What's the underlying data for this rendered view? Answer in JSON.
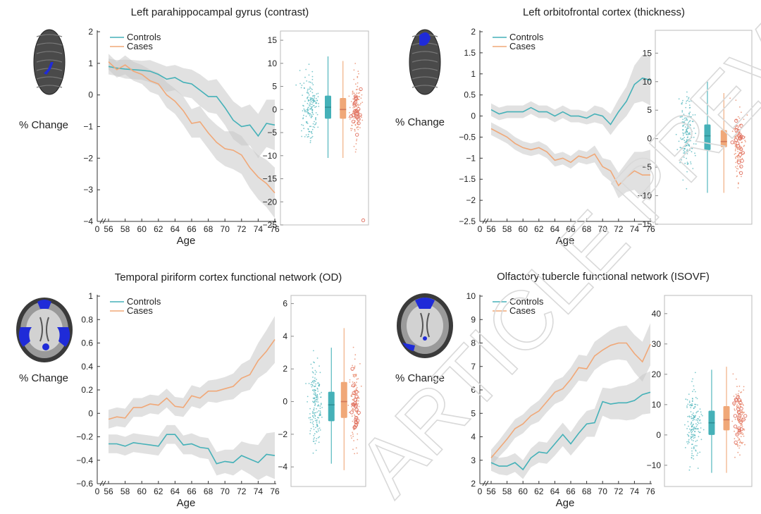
{
  "chart_data": [
    {
      "type": "line",
      "title": "Left parahippocampal gyrus (contrast)",
      "ylabel": "% Change",
      "xlabel": "Age",
      "x": [
        56,
        57,
        58,
        59,
        60,
        61,
        62,
        63,
        64,
        65,
        66,
        67,
        68,
        69,
        70,
        71,
        72,
        73,
        74,
        75,
        76
      ],
      "xticks": [
        "0",
        "56",
        "58",
        "60",
        "62",
        "64",
        "66",
        "68",
        "70",
        "72",
        "74",
        "76"
      ],
      "ylim": [
        -4,
        2
      ],
      "yticks": [
        "2",
        "1",
        "0",
        "−1",
        "−2",
        "−3",
        "−4"
      ],
      "series": [
        {
          "name": "Controls",
          "color": "#45b1b8",
          "values": [
            0.9,
            0.85,
            0.82,
            0.8,
            0.78,
            0.75,
            0.65,
            0.5,
            0.55,
            0.4,
            0.35,
            0.15,
            -0.05,
            -0.05,
            -0.4,
            -0.8,
            -1.0,
            -0.95,
            -1.3,
            -0.9,
            -0.95
          ]
        },
        {
          "name": "Cases",
          "color": "#f0a878",
          "values": [
            1.05,
            0.8,
            0.95,
            0.75,
            0.65,
            0.45,
            0.35,
            0.0,
            -0.2,
            -0.5,
            -0.9,
            -0.85,
            -1.2,
            -1.5,
            -1.7,
            -1.75,
            -1.9,
            -2.3,
            -2.6,
            -2.8,
            -3.1
          ]
        }
      ],
      "band_width": [
        0.25,
        0.25,
        0.3,
        0.3,
        0.3,
        0.35,
        0.35,
        0.4,
        0.4,
        0.45,
        0.45,
        0.5,
        0.5,
        0.55,
        0.55,
        0.6,
        0.6,
        0.65,
        0.7,
        0.75,
        0.8
      ],
      "box": {
        "ylim": [
          -25,
          17
        ],
        "yticks": [
          "15",
          "10",
          "5",
          "0",
          "−5",
          "−10",
          "−15",
          "−20",
          "−25"
        ],
        "controls": {
          "median": 0.5,
          "q1": -2,
          "q3": 3,
          "lo": -10.5,
          "hi": 11.5
        },
        "cases": {
          "median": 0,
          "q1": -2,
          "q3": 2.5,
          "lo": -10.5,
          "hi": 10.5
        },
        "case_outlier": -24
      },
      "legend": [
        "Controls",
        "Cases"
      ],
      "region_icon": "sagittal-brain-icon"
    },
    {
      "type": "line",
      "title": "Left orbitofrontal cortex (thickness)",
      "ylabel": "% Change",
      "xlabel": "Age",
      "x": [
        56,
        57,
        58,
        59,
        60,
        61,
        62,
        63,
        64,
        65,
        66,
        67,
        68,
        69,
        70,
        71,
        72,
        73,
        74,
        75,
        76
      ],
      "xticks": [
        "0",
        "56",
        "58",
        "60",
        "62",
        "64",
        "66",
        "68",
        "70",
        "72",
        "74",
        "76"
      ],
      "ylim": [
        -2.5,
        2
      ],
      "yticks": [
        "2",
        "1.5",
        "1",
        "0.5",
        "0",
        "−0.5",
        "−1",
        "−1.5",
        "−2",
        "−2.5"
      ],
      "series": [
        {
          "name": "Controls",
          "color": "#45b1b8",
          "values": [
            0.15,
            0.05,
            0.1,
            0.1,
            0.1,
            0.2,
            0.1,
            0.1,
            0.0,
            0.1,
            0.0,
            0.0,
            -0.05,
            0.05,
            0.0,
            -0.2,
            0.1,
            0.35,
            0.75,
            0.9,
            0.85
          ]
        },
        {
          "name": "Cases",
          "color": "#f0a878",
          "values": [
            -0.3,
            -0.4,
            -0.5,
            -0.65,
            -0.75,
            -0.8,
            -0.75,
            -0.85,
            -1.05,
            -1.0,
            -1.1,
            -0.95,
            -1.0,
            -0.9,
            -1.2,
            -1.3,
            -1.65,
            -1.45,
            -1.3,
            -1.4,
            -1.4
          ]
        }
      ],
      "band_width": [
        0.15,
        0.15,
        0.15,
        0.15,
        0.15,
        0.15,
        0.15,
        0.15,
        0.15,
        0.15,
        0.15,
        0.15,
        0.15,
        0.2,
        0.2,
        0.25,
        0.3,
        0.35,
        0.45,
        0.55,
        0.6
      ],
      "box": {
        "ylim": [
          -15,
          19
        ],
        "yticks": [
          "15",
          "10",
          "5",
          "0",
          "−5",
          "−10",
          "−15"
        ],
        "controls": {
          "median": 0.5,
          "q1": -2,
          "q3": 2.5,
          "lo": -9.5,
          "hi": 10
        },
        "cases": {
          "median": -0.5,
          "q1": -1.5,
          "q3": 1.5,
          "lo": -9.5,
          "hi": 8
        },
        "case_outlier": null
      },
      "legend": [
        "Controls",
        "Cases"
      ],
      "region_icon": "sagittal-brain-icon"
    },
    {
      "type": "line",
      "title": "Temporal piriform cortex functional network (OD)",
      "ylabel": "% Change",
      "xlabel": "Age",
      "x": [
        56,
        57,
        58,
        59,
        60,
        61,
        62,
        63,
        64,
        65,
        66,
        67,
        68,
        69,
        70,
        71,
        72,
        73,
        74,
        75,
        76
      ],
      "xticks": [
        "0",
        "56",
        "58",
        "60",
        "62",
        "64",
        "66",
        "68",
        "70",
        "72",
        "74",
        "76"
      ],
      "ylim": [
        -0.6,
        1
      ],
      "yticks": [
        "1",
        "0.8",
        "0.6",
        "0.4",
        "0.2",
        "0",
        "−0.2",
        "−0.4",
        "−0.6"
      ],
      "series": [
        {
          "name": "Controls",
          "color": "#45b1b8",
          "values": [
            -0.26,
            -0.26,
            -0.28,
            -0.25,
            -0.26,
            -0.27,
            -0.28,
            -0.18,
            -0.18,
            -0.27,
            -0.26,
            -0.29,
            -0.3,
            -0.43,
            -0.41,
            -0.42,
            -0.36,
            -0.39,
            -0.42,
            -0.35,
            -0.36
          ]
        },
        {
          "name": "Cases",
          "color": "#f0a878",
          "values": [
            -0.05,
            -0.03,
            -0.04,
            0.05,
            0.05,
            0.08,
            0.07,
            0.13,
            0.06,
            0.05,
            0.15,
            0.13,
            0.19,
            0.19,
            0.21,
            0.23,
            0.3,
            0.33,
            0.45,
            0.53,
            0.63
          ]
        }
      ],
      "band_width": [
        0.08,
        0.08,
        0.08,
        0.08,
        0.08,
        0.08,
        0.08,
        0.08,
        0.08,
        0.08,
        0.09,
        0.09,
        0.09,
        0.1,
        0.1,
        0.11,
        0.12,
        0.13,
        0.15,
        0.18,
        0.2
      ],
      "box": {
        "ylim": [
          -5.2,
          6.5
        ],
        "yticks": [
          "6",
          "4",
          "2",
          "0",
          "−2",
          "−4"
        ],
        "controls": {
          "median": -0.2,
          "q1": -1.2,
          "q3": 0.6,
          "lo": -3.8,
          "hi": 3.3
        },
        "cases": {
          "median": 0,
          "q1": -1.0,
          "q3": 1.2,
          "lo": -4.2,
          "hi": 4.5
        },
        "case_outlier": null
      },
      "legend": [
        "Controls",
        "Cases"
      ],
      "region_icon": "axial-brain-icon"
    },
    {
      "type": "line",
      "title": "Olfactory tubercle functional network (ISOVF)",
      "ylabel": "% Change",
      "xlabel": "Age",
      "x": [
        56,
        57,
        58,
        59,
        60,
        61,
        62,
        63,
        64,
        65,
        66,
        67,
        68,
        69,
        70,
        71,
        72,
        73,
        74,
        75,
        76
      ],
      "xticks": [
        "0",
        "56",
        "58",
        "60",
        "62",
        "64",
        "66",
        "68",
        "70",
        "72",
        "74",
        "76"
      ],
      "ylim": [
        2,
        10
      ],
      "yticks": [
        "10",
        "9",
        "8",
        "7",
        "6",
        "5",
        "4",
        "3",
        "2"
      ],
      "series": [
        {
          "name": "Controls",
          "color": "#45b1b8",
          "values": [
            2.9,
            2.75,
            2.75,
            2.9,
            2.6,
            3.1,
            3.35,
            3.3,
            3.7,
            4.1,
            3.7,
            4.15,
            4.55,
            4.6,
            5.5,
            5.4,
            5.45,
            5.45,
            5.55,
            5.8,
            5.9
          ]
        },
        {
          "name": "Cases",
          "color": "#f0a878",
          "values": [
            3.1,
            3.5,
            3.9,
            4.35,
            4.55,
            4.9,
            5.1,
            5.5,
            5.9,
            6.05,
            6.45,
            6.95,
            6.9,
            7.45,
            7.7,
            7.9,
            8.0,
            8.0,
            7.55,
            7.2,
            7.95
          ]
        }
      ],
      "band_width": [
        0.35,
        0.35,
        0.4,
        0.4,
        0.4,
        0.4,
        0.45,
        0.45,
        0.5,
        0.5,
        0.5,
        0.55,
        0.55,
        0.6,
        0.6,
        0.65,
        0.7,
        0.75,
        0.8,
        0.85,
        0.9
      ],
      "box": {
        "ylim": [
          -17,
          46
        ],
        "yticks": [
          "40",
          "30",
          "20",
          "10",
          "0",
          "−10"
        ],
        "controls": {
          "median": 4,
          "q1": 0,
          "q3": 8,
          "lo": -12.5,
          "hi": 21.5
        },
        "cases": {
          "median": 5,
          "q1": 1.5,
          "q3": 9.5,
          "lo": -12.5,
          "hi": 22.5
        },
        "case_outlier": null
      },
      "legend": [
        "Controls",
        "Cases"
      ],
      "region_icon": "axial-brain-icon"
    }
  ],
  "watermark": "ARTICLE PREVIEW"
}
